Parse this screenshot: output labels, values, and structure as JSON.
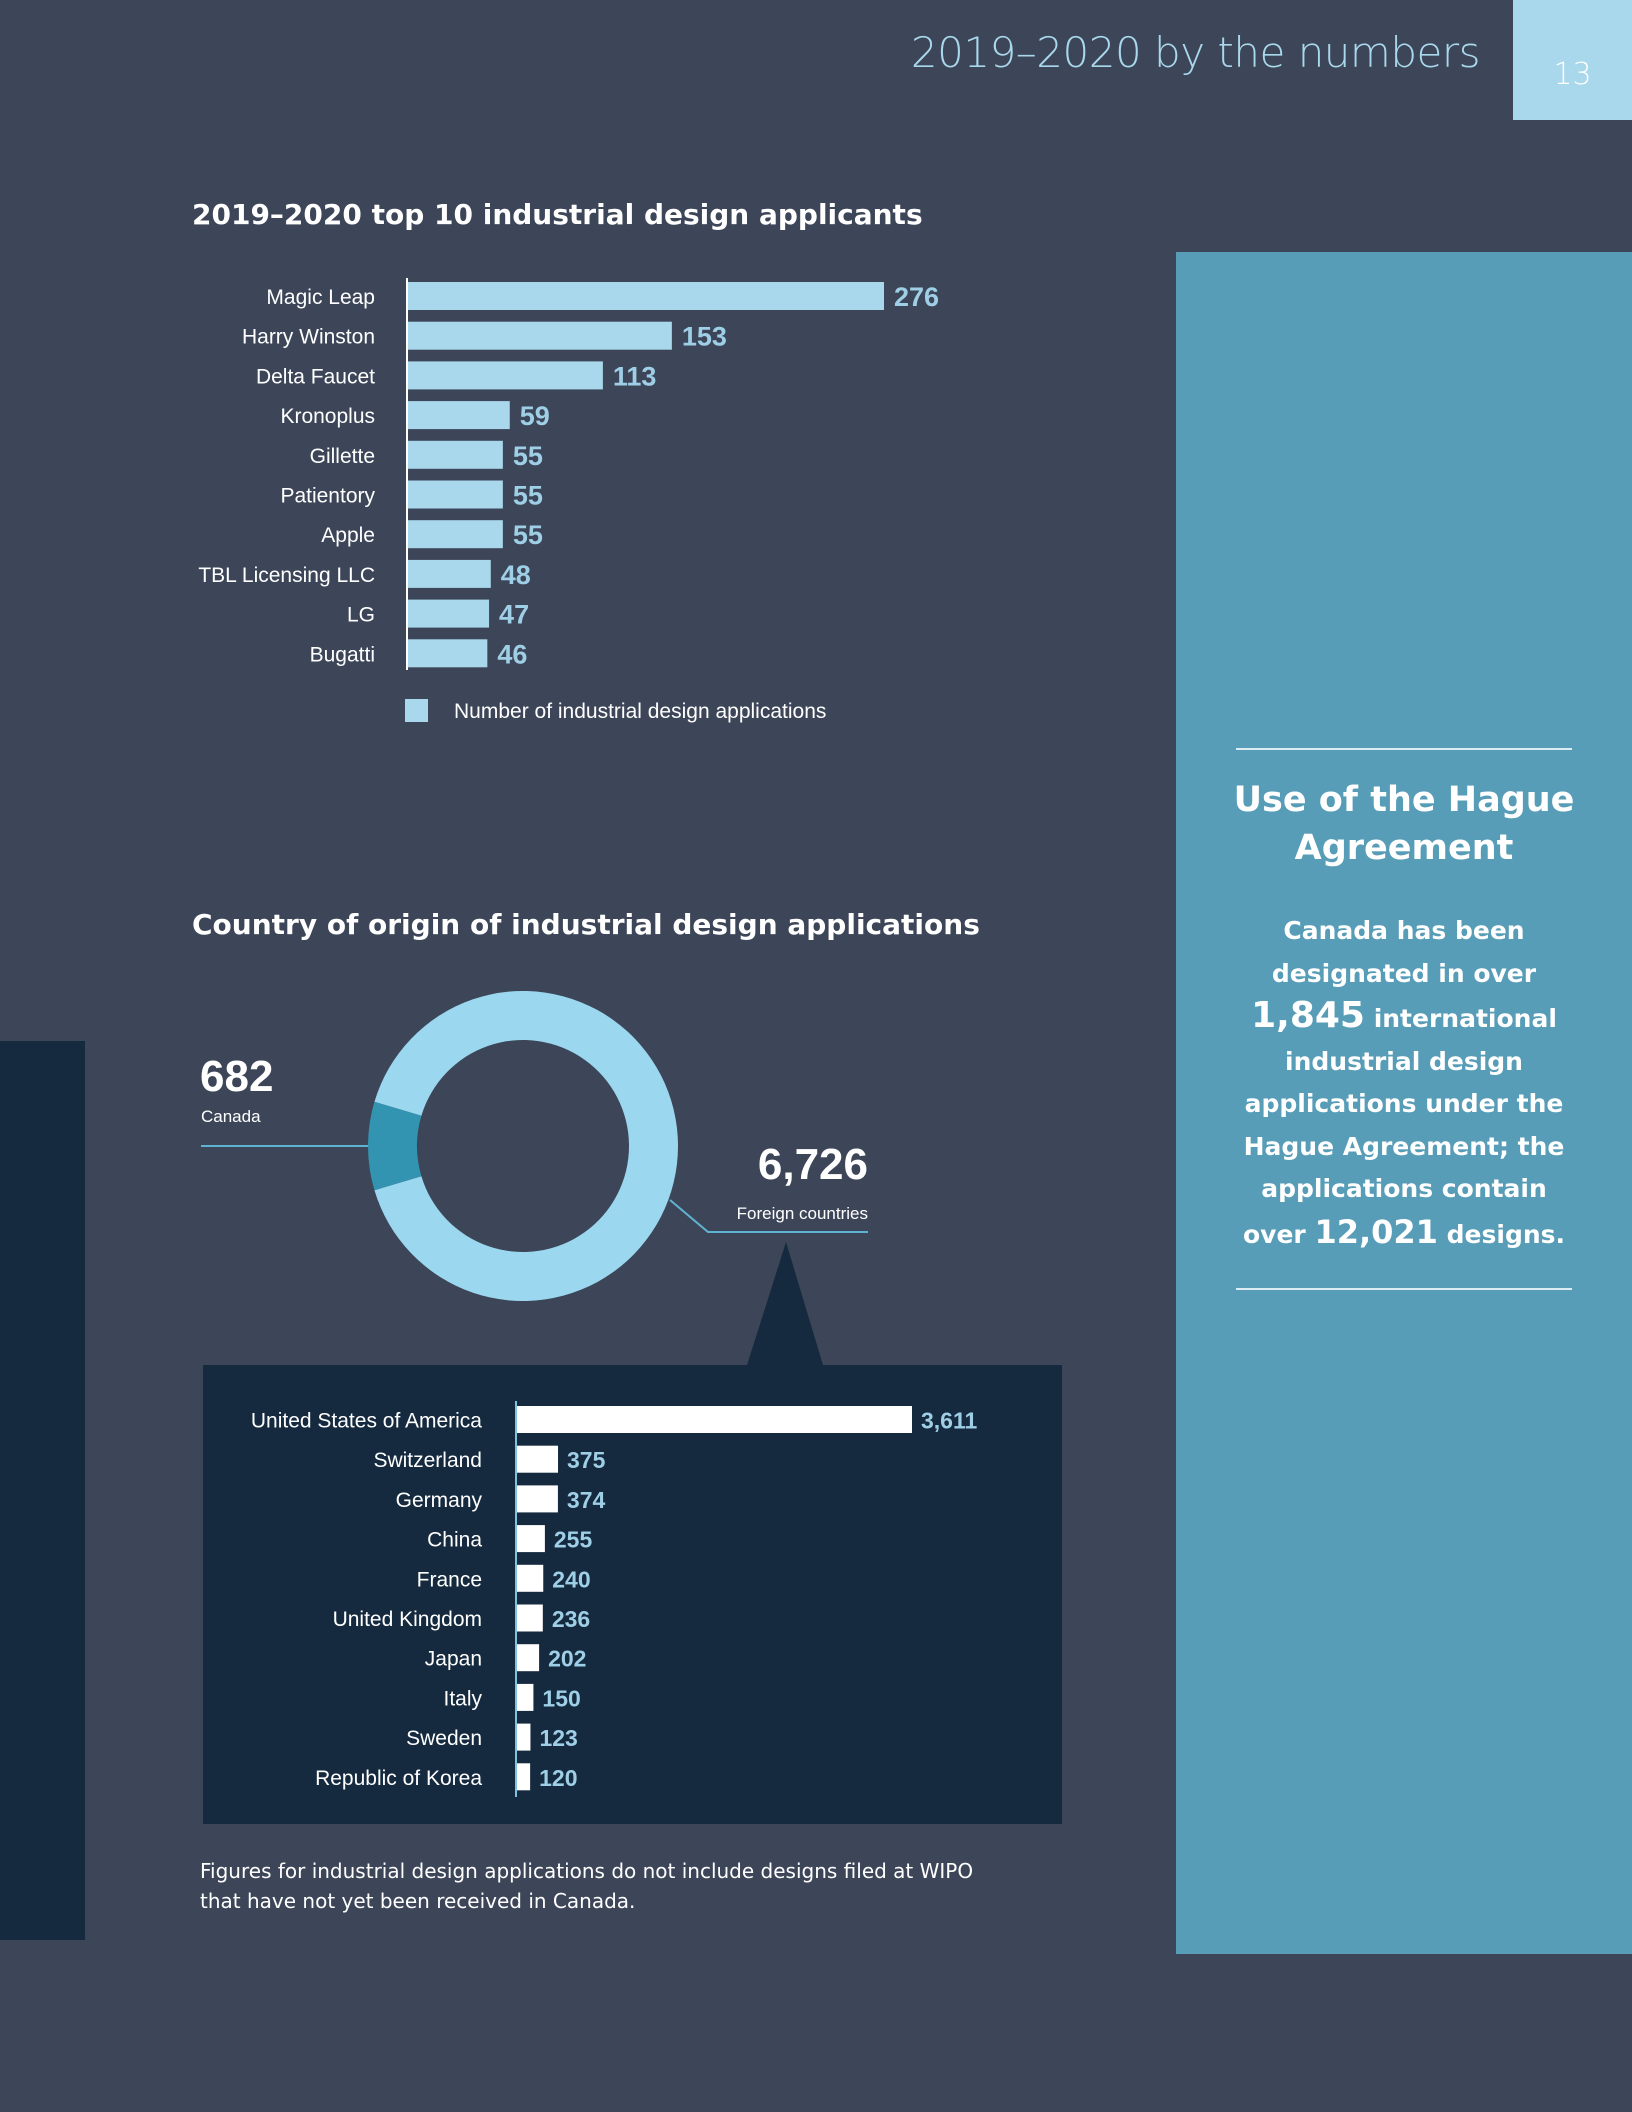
{
  "header": {
    "title": "2019–2020 by the numbers",
    "page_number": "13"
  },
  "chart_data": [
    {
      "type": "bar",
      "orientation": "horizontal",
      "title": "2019–2020 top 10 industrial design applicants",
      "categories": [
        "Magic Leap",
        "Harry Winston",
        "Delta Faucet",
        "Kronoplus",
        "Gillette",
        "Patientory",
        "Apple",
        "TBL Licensing LLC",
        "LG",
        "Bugatti"
      ],
      "series": [
        {
          "name": "Number of industrial design applications",
          "values": [
            276,
            153,
            113,
            59,
            55,
            55,
            55,
            48,
            47,
            46
          ],
          "color": "#a9d7ec"
        }
      ],
      "xlim": [
        0,
        276
      ],
      "grid": false,
      "legend": "bottom"
    },
    {
      "type": "pie",
      "style": "donut",
      "title": "Country of origin of industrial design applications",
      "slices": [
        {
          "label": "Canada",
          "value": 682,
          "value_label": "682",
          "color": "#3394b2"
        },
        {
          "label": "Foreign countries",
          "value": 6726,
          "value_label": "6,726",
          "color": "#9bd8f0"
        }
      ]
    },
    {
      "type": "bar",
      "orientation": "horizontal",
      "categories": [
        "United States of America",
        "Switzerland",
        "Germany",
        "China",
        "France",
        "United Kingdom",
        "Japan",
        "Italy",
        "Sweden",
        "Republic of Korea"
      ],
      "series": [
        {
          "values": [
            3611,
            375,
            374,
            255,
            240,
            236,
            202,
            150,
            123,
            120
          ],
          "labels": [
            "3,611",
            "375",
            "374",
            "255",
            "240",
            "236",
            "202",
            "150",
            "123",
            "120"
          ],
          "color": "#ffffff"
        }
      ],
      "xlim": [
        0,
        3611
      ],
      "grid": false
    }
  ],
  "sidebar": {
    "title": "Use of the Hague Agreement",
    "body": {
      "t1": "Canada has been designated in over",
      "n1": "1,845",
      "t2": "international industrial design applications under the Hague Agreement; the applications contain over",
      "n2": "12,021",
      "t3": "designs."
    }
  },
  "footnote": "Figures for industrial design applications do not include designs filed at WIPO that have not yet been received in Canada.",
  "colors": {
    "background": "#3d4658",
    "dark_navy": "#152a3f",
    "sidebar": "#589db7",
    "light_blue": "#a9d7ec",
    "label_blue": "#9fcfe6"
  }
}
